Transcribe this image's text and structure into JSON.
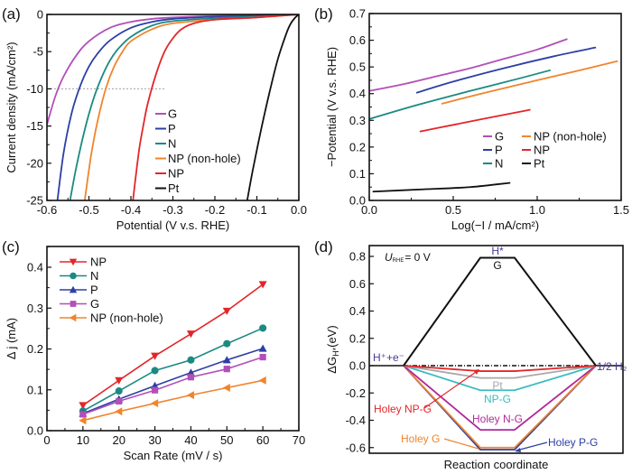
{
  "chart_data": [
    {
      "id": "a",
      "panel_label": "(a)",
      "type": "line",
      "xlabel": "Potential (V v.s. RHE)",
      "ylabel": "Current density (mA/cm²)",
      "xlim": [
        -0.6,
        0.0
      ],
      "ylim": [
        -25,
        0
      ],
      "xticks": [
        "-0.6",
        "-0.5",
        "-0.4",
        "-0.3",
        "-0.2",
        "-0.1",
        "0.0"
      ],
      "xtick_values": [
        -0.6,
        -0.5,
        -0.4,
        -0.3,
        -0.2,
        -0.1,
        0.0
      ],
      "yticks": [
        "0",
        "-5",
        "-10",
        "-15",
        "-20",
        "-25"
      ],
      "ytick_values": [
        0,
        -5,
        -10,
        -15,
        -20,
        -25
      ],
      "reference_line": {
        "y": -10,
        "x_from": -0.6,
        "x_to": -0.32,
        "style": "dotted"
      },
      "legend_position": "center-right",
      "series": [
        {
          "name": "G",
          "color": "#b24fb8",
          "x": [
            0.0,
            -0.1,
            -0.2,
            -0.3,
            -0.35,
            -0.4,
            -0.45,
            -0.5,
            -0.53,
            -0.56,
            -0.58,
            -0.6
          ],
          "y": [
            0,
            -0.1,
            -0.2,
            -0.4,
            -0.6,
            -1.0,
            -1.8,
            -3.6,
            -5.5,
            -8.3,
            -11.0,
            -14.8
          ]
        },
        {
          "name": "P",
          "color": "#2d3fa5",
          "x": [
            0.0,
            -0.1,
            -0.2,
            -0.3,
            -0.35,
            -0.4,
            -0.45,
            -0.48,
            -0.5,
            -0.52,
            -0.54,
            -0.56,
            -0.575
          ],
          "y": [
            0,
            -0.2,
            -0.3,
            -0.6,
            -1.0,
            -1.8,
            -3.5,
            -5.3,
            -7.0,
            -9.5,
            -13.0,
            -18.5,
            -25
          ]
        },
        {
          "name": "N",
          "color": "#1a8a82",
          "x": [
            0.0,
            -0.1,
            -0.2,
            -0.3,
            -0.35,
            -0.4,
            -0.43,
            -0.45,
            -0.47,
            -0.49,
            -0.51,
            -0.53,
            -0.545
          ],
          "y": [
            0,
            -0.3,
            -0.5,
            -0.9,
            -1.5,
            -3.0,
            -4.6,
            -6.2,
            -8.5,
            -11.5,
            -15.5,
            -20.5,
            -25
          ]
        },
        {
          "name": "NP (non-hole)",
          "color": "#f0852c",
          "x": [
            0.0,
            -0.1,
            -0.2,
            -0.3,
            -0.35,
            -0.4,
            -0.42,
            -0.44,
            -0.46,
            -0.48,
            -0.495,
            -0.51
          ],
          "y": [
            0,
            -0.4,
            -0.7,
            -1.2,
            -2.0,
            -3.6,
            -5.0,
            -7.0,
            -10.0,
            -14.5,
            -19.0,
            -25
          ]
        },
        {
          "name": "NP",
          "color": "#e3262a",
          "x": [
            0.0,
            -0.1,
            -0.2,
            -0.25,
            -0.28,
            -0.3,
            -0.32,
            -0.34,
            -0.36,
            -0.37,
            -0.38,
            -0.39,
            -0.395
          ],
          "y": [
            0,
            -0.4,
            -0.7,
            -1.2,
            -2.0,
            -3.2,
            -5.0,
            -8.0,
            -12.0,
            -14.8,
            -18.0,
            -22.5,
            -25
          ]
        },
        {
          "name": "Pt",
          "color": "#111111",
          "x": [
            0.0,
            -0.01,
            -0.02,
            -0.03,
            -0.05,
            -0.07,
            -0.09,
            -0.11,
            -0.123
          ],
          "y": [
            0,
            -0.5,
            -1.3,
            -2.6,
            -6.0,
            -10.5,
            -15.5,
            -21.0,
            -25
          ]
        }
      ]
    },
    {
      "id": "b",
      "panel_label": "(b)",
      "type": "line",
      "xlabel": "Log(−I / mA/cm²)",
      "ylabel": "−Potential (V v.s. RHE)",
      "xlim": [
        0.0,
        1.5
      ],
      "ylim": [
        0.0,
        0.7
      ],
      "xticks": [
        "0.0",
        "0.5",
        "1.0",
        "1.5"
      ],
      "xtick_values": [
        0.0,
        0.5,
        1.0,
        1.5
      ],
      "yticks": [
        "0.0",
        "0.1",
        "0.2",
        "0.3",
        "0.4",
        "0.5",
        "0.6",
        "0.7"
      ],
      "ytick_values": [
        0.0,
        0.1,
        0.2,
        0.3,
        0.4,
        0.5,
        0.6,
        0.7
      ],
      "legend_position": "lower-right",
      "series": [
        {
          "name": "G",
          "color": "#b24fb8",
          "x": [
            0.0,
            0.2,
            0.4,
            0.6,
            0.8,
            1.0,
            1.18
          ],
          "y": [
            0.41,
            0.435,
            0.465,
            0.495,
            0.53,
            0.565,
            0.605
          ]
        },
        {
          "name": "P",
          "color": "#2d3fa5",
          "x": [
            0.28,
            0.5,
            0.8,
            1.1,
            1.35
          ],
          "y": [
            0.403,
            0.445,
            0.495,
            0.54,
            0.573
          ]
        },
        {
          "name": "N",
          "color": "#1a8a82",
          "x": [
            0.0,
            0.3,
            0.6,
            0.9,
            1.08
          ],
          "y": [
            0.305,
            0.36,
            0.41,
            0.458,
            0.488
          ]
        },
        {
          "name": "NP (non-hole)",
          "color": "#f0852c",
          "x": [
            0.43,
            0.7,
            1.0,
            1.25,
            1.48
          ],
          "y": [
            0.362,
            0.405,
            0.45,
            0.487,
            0.522
          ]
        },
        {
          "name": "NP",
          "color": "#e3262a",
          "x": [
            0.3,
            0.5,
            0.7,
            0.96
          ],
          "y": [
            0.258,
            0.283,
            0.308,
            0.34
          ]
        },
        {
          "name": "Pt",
          "color": "#111111",
          "x": [
            0.02,
            0.3,
            0.6,
            0.84
          ],
          "y": [
            0.033,
            0.041,
            0.05,
            0.066
          ]
        }
      ]
    },
    {
      "id": "c",
      "panel_label": "(c)",
      "type": "line",
      "xlabel": "Scan Rate (mV / s)",
      "ylabel": "Δ j (mA)",
      "xlim": [
        0,
        70
      ],
      "ylim": [
        0.0,
        0.45
      ],
      "xticks": [
        "0",
        "10",
        "20",
        "30",
        "40",
        "50",
        "60",
        "70"
      ],
      "xtick_values": [
        0,
        10,
        20,
        30,
        40,
        50,
        60,
        70
      ],
      "yticks": [
        "0.0",
        "0.1",
        "0.2",
        "0.3",
        "0.4"
      ],
      "ytick_values": [
        0.0,
        0.1,
        0.2,
        0.3,
        0.4
      ],
      "legend_position": "top-left",
      "x": [
        10,
        20,
        30,
        40,
        50,
        60
      ],
      "series": [
        {
          "name": "NP",
          "color": "#e3262a",
          "marker": "triangle-down",
          "values": [
            0.062,
            0.123,
            0.183,
            0.237,
            0.293,
            0.358
          ]
        },
        {
          "name": "N",
          "color": "#1a8a82",
          "marker": "circle",
          "values": [
            0.048,
            0.097,
            0.147,
            0.173,
            0.213,
            0.251
          ]
        },
        {
          "name": "P",
          "color": "#2d3fa5",
          "marker": "triangle-up",
          "values": [
            0.042,
            0.077,
            0.11,
            0.142,
            0.173,
            0.201
          ]
        },
        {
          "name": "G",
          "color": "#b24fb8",
          "marker": "square",
          "values": [
            0.04,
            0.072,
            0.099,
            0.131,
            0.151,
            0.18
          ]
        },
        {
          "name": "NP (non-hole)",
          "color": "#f0852c",
          "marker": "triangle-left",
          "values": [
            0.025,
            0.047,
            0.067,
            0.087,
            0.105,
            0.123
          ]
        }
      ]
    },
    {
      "id": "d",
      "panel_label": "(d)",
      "type": "line",
      "xlabel": "Reaction coordinate",
      "ylabel": "ΔG",
      "ylabel_sub": "H*",
      "ylabel_unit": "(eV)",
      "ylim": [
        -0.62,
        0.88
      ],
      "yticks": [
        "0.8",
        "0.6",
        "0.4",
        "0.2",
        "0.0",
        "-0.2",
        "-0.4",
        "-0.6"
      ],
      "ytick_values": [
        0.8,
        0.6,
        0.4,
        0.2,
        0.0,
        -0.2,
        -0.4,
        -0.6
      ],
      "condition_label": "U",
      "condition_sub": "RHE",
      "condition_value": "= 0 V",
      "state_labels": {
        "initial": "H⁺+e⁻",
        "intermediate": "H*",
        "final": "1/2 H₂"
      },
      "states": [
        "H⁺+e⁻",
        "H*",
        "1/2 H₂"
      ],
      "series": [
        {
          "name": "G",
          "label": "G",
          "color": "#111111",
          "value": 0.79
        },
        {
          "name": "Holey NP-G",
          "label": "Holey NP-G",
          "color": "#e3262a",
          "value": -0.04
        },
        {
          "name": "Pt",
          "label": "Pt",
          "color": "#a8a8a8",
          "value": -0.09
        },
        {
          "name": "NP-G",
          "label": "NP-G",
          "color": "#3bbcc0",
          "value": -0.18
        },
        {
          "name": "Holey N-G",
          "label": "Holey N-G",
          "color": "#b02a9a",
          "value": -0.47
        },
        {
          "name": "Holey G",
          "label": "Holey G",
          "color": "#f0852c",
          "value": -0.6
        },
        {
          "name": "Holey P-G",
          "label": "Holey P-G",
          "color": "#2d3fa5",
          "value": -0.615
        }
      ],
      "reference_level": 0.0
    }
  ]
}
